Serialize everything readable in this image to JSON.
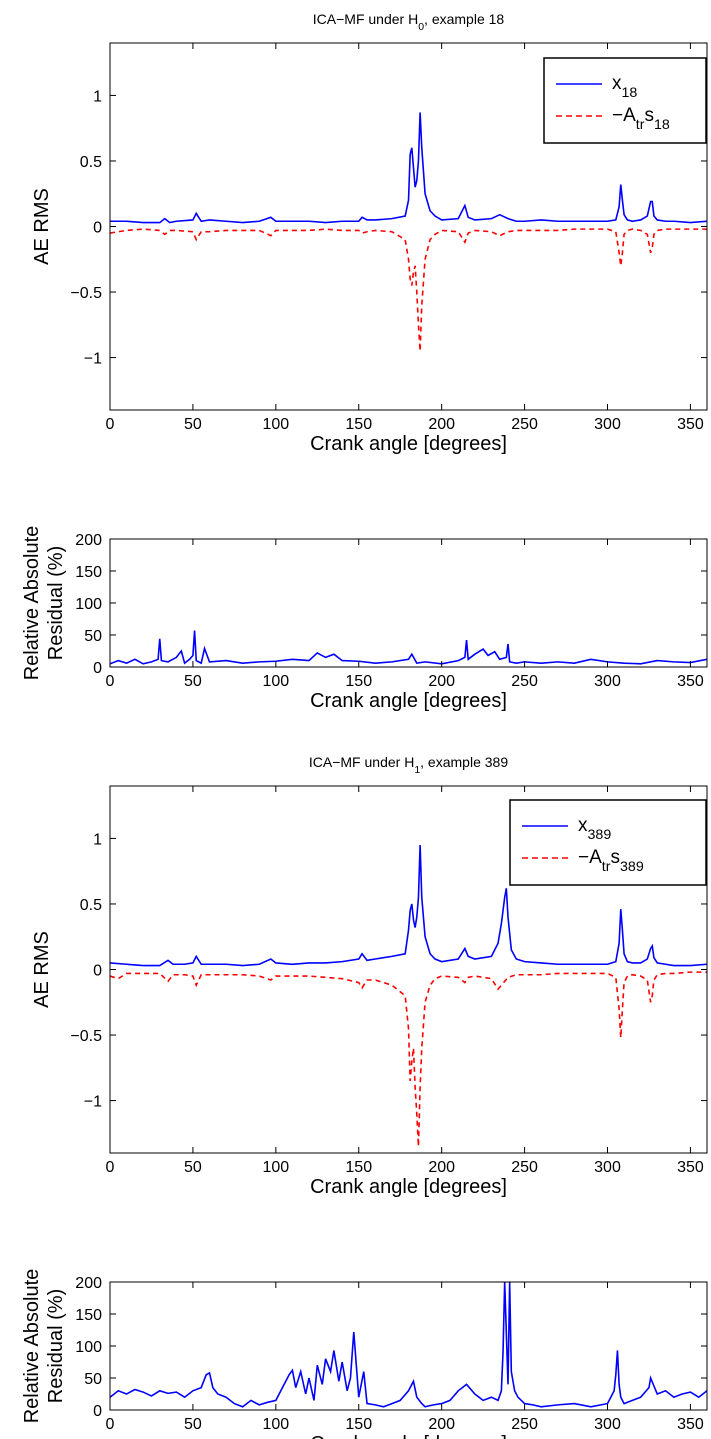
{
  "chart_data": [
    {
      "type": "line",
      "title": {
        "pre": "ICA−MF under H",
        "sub": "0",
        "post": ", example 18"
      },
      "xlabel": "Crank angle [degrees]",
      "ylabel": [
        "AE RMS"
      ],
      "xlim": [
        0,
        360
      ],
      "ylim": [
        -1.4,
        1.4
      ],
      "xticks": [
        0,
        50,
        100,
        150,
        200,
        250,
        300,
        350
      ],
      "yticks": [
        -1,
        -0.5,
        0,
        0.5,
        1
      ],
      "legend": {
        "placement": "top-right",
        "entries": [
          {
            "base": "x",
            "sub": "18",
            "color": "#0000ff",
            "style": "solid"
          },
          {
            "base": "−A",
            "sub": "tr",
            "base2": "s",
            "sub2": "18",
            "color": "#ff0000",
            "style": "dashed"
          }
        ]
      },
      "series": [
        {
          "color": "#0000ff",
          "style": "solid",
          "x": [
            0,
            10,
            20,
            30,
            33,
            36,
            40,
            50,
            52,
            55,
            60,
            70,
            80,
            90,
            97,
            100,
            110,
            120,
            130,
            140,
            150,
            152,
            155,
            160,
            170,
            178,
            180,
            181,
            182,
            183,
            184,
            185,
            186,
            187,
            188,
            190,
            193,
            196,
            200,
            210,
            214,
            216,
            220,
            230,
            235,
            240,
            245,
            250,
            260,
            270,
            280,
            290,
            300,
            305,
            307,
            308,
            309,
            310,
            312,
            315,
            320,
            324,
            326,
            327,
            328,
            330,
            335,
            340,
            350,
            360
          ],
          "y": [
            0.04,
            0.04,
            0.03,
            0.03,
            0.06,
            0.03,
            0.04,
            0.05,
            0.1,
            0.04,
            0.05,
            0.04,
            0.03,
            0.04,
            0.07,
            0.04,
            0.04,
            0.04,
            0.03,
            0.04,
            0.04,
            0.07,
            0.05,
            0.05,
            0.06,
            0.08,
            0.2,
            0.55,
            0.6,
            0.45,
            0.3,
            0.35,
            0.5,
            0.87,
            0.6,
            0.25,
            0.12,
            0.08,
            0.05,
            0.06,
            0.16,
            0.07,
            0.05,
            0.06,
            0.09,
            0.06,
            0.04,
            0.04,
            0.05,
            0.04,
            0.04,
            0.04,
            0.04,
            0.05,
            0.15,
            0.32,
            0.2,
            0.09,
            0.05,
            0.04,
            0.05,
            0.08,
            0.19,
            0.19,
            0.08,
            0.05,
            0.04,
            0.04,
            0.03,
            0.04
          ]
        },
        {
          "color": "#ff0000",
          "style": "dashed",
          "x": [
            0,
            10,
            20,
            30,
            33,
            36,
            40,
            50,
            52,
            55,
            60,
            70,
            80,
            90,
            97,
            100,
            110,
            120,
            130,
            140,
            150,
            152,
            155,
            160,
            170,
            178,
            180,
            181,
            182,
            183,
            184,
            185,
            186,
            187,
            188,
            190,
            193,
            196,
            200,
            210,
            214,
            216,
            220,
            230,
            235,
            240,
            245,
            250,
            260,
            270,
            280,
            290,
            300,
            305,
            307,
            308,
            309,
            310,
            312,
            315,
            320,
            324,
            326,
            327,
            328,
            330,
            335,
            340,
            350,
            360
          ],
          "y": [
            -0.05,
            -0.03,
            -0.02,
            -0.03,
            -0.06,
            -0.03,
            -0.03,
            -0.04,
            -0.1,
            -0.04,
            -0.04,
            -0.03,
            -0.03,
            -0.03,
            -0.07,
            -0.03,
            -0.03,
            -0.03,
            -0.02,
            -0.03,
            -0.03,
            -0.05,
            -0.04,
            -0.03,
            -0.04,
            -0.1,
            -0.25,
            -0.4,
            -0.45,
            -0.35,
            -0.3,
            -0.5,
            -0.75,
            -0.95,
            -0.6,
            -0.25,
            -0.1,
            -0.06,
            -0.03,
            -0.04,
            -0.12,
            -0.05,
            -0.03,
            -0.04,
            -0.07,
            -0.04,
            -0.03,
            -0.03,
            -0.03,
            -0.03,
            -0.02,
            -0.02,
            -0.02,
            -0.04,
            -0.2,
            -0.3,
            -0.2,
            -0.06,
            -0.03,
            -0.02,
            -0.03,
            -0.06,
            -0.2,
            -0.16,
            -0.06,
            -0.03,
            -0.02,
            -0.02,
            -0.02,
            -0.02
          ]
        }
      ]
    },
    {
      "type": "line",
      "xlabel": "Crank angle [degrees]",
      "ylabel": [
        "Relative Absolute",
        "Residual (%)"
      ],
      "xlim": [
        0,
        360
      ],
      "ylim": [
        0,
        200
      ],
      "xticks": [
        0,
        50,
        100,
        150,
        200,
        250,
        300,
        350
      ],
      "yticks": [
        0,
        50,
        100,
        150,
        200
      ],
      "series": [
        {
          "color": "#0000ff",
          "style": "solid",
          "x": [
            0,
            5,
            10,
            15,
            20,
            25,
            29,
            30,
            31,
            35,
            40,
            43,
            45,
            48,
            50,
            51,
            52,
            55,
            57,
            60,
            70,
            80,
            90,
            100,
            110,
            120,
            125,
            130,
            135,
            140,
            150,
            160,
            170,
            180,
            182,
            185,
            190,
            200,
            210,
            214,
            215,
            216,
            220,
            225,
            228,
            232,
            235,
            239,
            240,
            241,
            245,
            250,
            260,
            270,
            280,
            290,
            300,
            310,
            320,
            330,
            340,
            350,
            360
          ],
          "y": [
            5,
            10,
            6,
            12,
            5,
            8,
            12,
            44,
            10,
            8,
            15,
            25,
            6,
            12,
            18,
            57,
            10,
            6,
            29,
            8,
            10,
            6,
            8,
            9,
            12,
            10,
            22,
            15,
            20,
            10,
            9,
            6,
            8,
            12,
            20,
            6,
            8,
            5,
            10,
            15,
            42,
            12,
            20,
            28,
            18,
            24,
            12,
            15,
            36,
            8,
            6,
            8,
            6,
            8,
            6,
            12,
            8,
            6,
            5,
            10,
            8,
            7,
            12
          ]
        }
      ]
    },
    {
      "type": "line",
      "title": {
        "pre": "ICA−MF under H",
        "sub": "1",
        "post": ", example 389"
      },
      "xlabel": "Crank angle [degrees]",
      "ylabel": [
        "AE RMS"
      ],
      "xlim": [
        0,
        360
      ],
      "ylim": [
        -1.4,
        1.4
      ],
      "xticks": [
        0,
        50,
        100,
        150,
        200,
        250,
        300,
        350
      ],
      "yticks": [
        -1,
        -0.5,
        0,
        0.5,
        1
      ],
      "legend": {
        "placement": "top-right",
        "entries": [
          {
            "base": "x",
            "sub": "389",
            "color": "#0000ff",
            "style": "solid"
          },
          {
            "base": "−A",
            "sub": "tr",
            "base2": "s",
            "sub2": "389",
            "color": "#ff0000",
            "style": "dashed"
          }
        ]
      },
      "series": [
        {
          "color": "#0000ff",
          "style": "solid",
          "x": [
            0,
            10,
            20,
            30,
            35,
            38,
            45,
            50,
            52,
            55,
            60,
            70,
            80,
            90,
            97,
            100,
            110,
            120,
            130,
            140,
            150,
            152,
            155,
            160,
            170,
            178,
            180,
            181,
            182,
            183,
            184,
            185,
            186,
            187,
            188,
            190,
            193,
            196,
            200,
            210,
            214,
            216,
            220,
            230,
            234,
            236,
            238,
            239,
            240,
            242,
            245,
            250,
            260,
            270,
            280,
            290,
            300,
            305,
            307,
            308,
            309,
            310,
            312,
            315,
            320,
            324,
            326,
            327,
            328,
            330,
            335,
            340,
            350,
            360
          ],
          "y": [
            0.05,
            0.04,
            0.03,
            0.03,
            0.07,
            0.04,
            0.04,
            0.05,
            0.1,
            0.04,
            0.04,
            0.04,
            0.03,
            0.04,
            0.08,
            0.05,
            0.04,
            0.05,
            0.05,
            0.06,
            0.08,
            0.12,
            0.07,
            0.08,
            0.1,
            0.12,
            0.3,
            0.45,
            0.5,
            0.38,
            0.32,
            0.4,
            0.55,
            0.95,
            0.55,
            0.25,
            0.12,
            0.08,
            0.06,
            0.08,
            0.16,
            0.1,
            0.08,
            0.1,
            0.2,
            0.35,
            0.55,
            0.62,
            0.4,
            0.15,
            0.08,
            0.06,
            0.05,
            0.04,
            0.04,
            0.04,
            0.04,
            0.06,
            0.2,
            0.46,
            0.3,
            0.12,
            0.06,
            0.05,
            0.05,
            0.08,
            0.16,
            0.18,
            0.09,
            0.05,
            0.04,
            0.03,
            0.03,
            0.04
          ]
        },
        {
          "color": "#ff0000",
          "style": "dashed",
          "x": [
            0,
            5,
            10,
            20,
            30,
            35,
            38,
            45,
            50,
            52,
            55,
            60,
            70,
            80,
            90,
            97,
            100,
            110,
            120,
            130,
            140,
            150,
            152,
            155,
            160,
            170,
            178,
            180,
            181,
            182,
            183,
            184,
            185,
            186,
            187,
            188,
            190,
            193,
            196,
            200,
            210,
            214,
            216,
            220,
            230,
            234,
            236,
            238,
            240,
            245,
            250,
            260,
            270,
            280,
            290,
            300,
            305,
            307,
            308,
            309,
            310,
            312,
            315,
            320,
            324,
            326,
            327,
            328,
            330,
            335,
            340,
            350,
            360
          ],
          "y": [
            -0.05,
            -0.07,
            -0.03,
            -0.03,
            -0.03,
            -0.09,
            -0.04,
            -0.04,
            -0.05,
            -0.12,
            -0.04,
            -0.04,
            -0.04,
            -0.04,
            -0.05,
            -0.08,
            -0.05,
            -0.05,
            -0.05,
            -0.06,
            -0.07,
            -0.1,
            -0.14,
            -0.08,
            -0.08,
            -0.12,
            -0.2,
            -0.45,
            -0.85,
            -0.7,
            -0.6,
            -0.9,
            -1.1,
            -1.35,
            -0.9,
            -0.6,
            -0.25,
            -0.12,
            -0.07,
            -0.05,
            -0.06,
            -0.1,
            -0.06,
            -0.05,
            -0.07,
            -0.15,
            -0.12,
            -0.09,
            -0.06,
            -0.04,
            -0.04,
            -0.04,
            -0.03,
            -0.03,
            -0.03,
            -0.03,
            -0.06,
            -0.3,
            -0.52,
            -0.3,
            -0.1,
            -0.05,
            -0.04,
            -0.05,
            -0.08,
            -0.25,
            -0.2,
            -0.08,
            -0.04,
            -0.03,
            -0.03,
            -0.02,
            -0.02
          ]
        }
      ]
    },
    {
      "type": "line",
      "xlabel": "Crank angle [degrees]",
      "ylabel": [
        "Relative Absolute",
        "Residual (%)"
      ],
      "xlim": [
        0,
        360
      ],
      "ylim": [
        0,
        200
      ],
      "xticks": [
        0,
        50,
        100,
        150,
        200,
        250,
        300,
        350
      ],
      "yticks": [
        0,
        50,
        100,
        150,
        200
      ],
      "series": [
        {
          "color": "#0000ff",
          "style": "solid",
          "x": [
            0,
            5,
            10,
            15,
            20,
            25,
            30,
            35,
            40,
            45,
            50,
            55,
            58,
            60,
            62,
            65,
            70,
            75,
            80,
            85,
            90,
            95,
            100,
            105,
            108,
            110,
            112,
            115,
            118,
            120,
            123,
            125,
            128,
            130,
            133,
            135,
            138,
            140,
            143,
            145,
            147,
            150,
            153,
            155,
            160,
            165,
            170,
            175,
            180,
            183,
            185,
            188,
            190,
            195,
            200,
            205,
            210,
            215,
            220,
            225,
            230,
            234,
            236,
            237,
            238,
            240,
            241,
            242,
            244,
            246,
            250,
            255,
            260,
            270,
            280,
            290,
            300,
            304,
            305,
            306,
            307,
            308,
            310,
            315,
            320,
            325,
            326,
            330,
            335,
            340,
            345,
            350,
            355,
            360
          ],
          "y": [
            20,
            30,
            25,
            32,
            28,
            22,
            30,
            26,
            28,
            20,
            30,
            35,
            55,
            58,
            35,
            25,
            20,
            10,
            5,
            15,
            8,
            12,
            15,
            40,
            55,
            62,
            35,
            60,
            25,
            50,
            15,
            70,
            40,
            80,
            60,
            93,
            45,
            75,
            30,
            50,
            122,
            20,
            60,
            10,
            8,
            5,
            10,
            15,
            30,
            45,
            20,
            10,
            5,
            8,
            10,
            15,
            30,
            40,
            25,
            15,
            20,
            15,
            30,
            90,
            200,
            40,
            200,
            60,
            30,
            20,
            10,
            8,
            5,
            8,
            10,
            5,
            10,
            30,
            55,
            93,
            40,
            20,
            10,
            15,
            20,
            35,
            50,
            25,
            30,
            20,
            25,
            28,
            20,
            30
          ]
        }
      ]
    }
  ]
}
